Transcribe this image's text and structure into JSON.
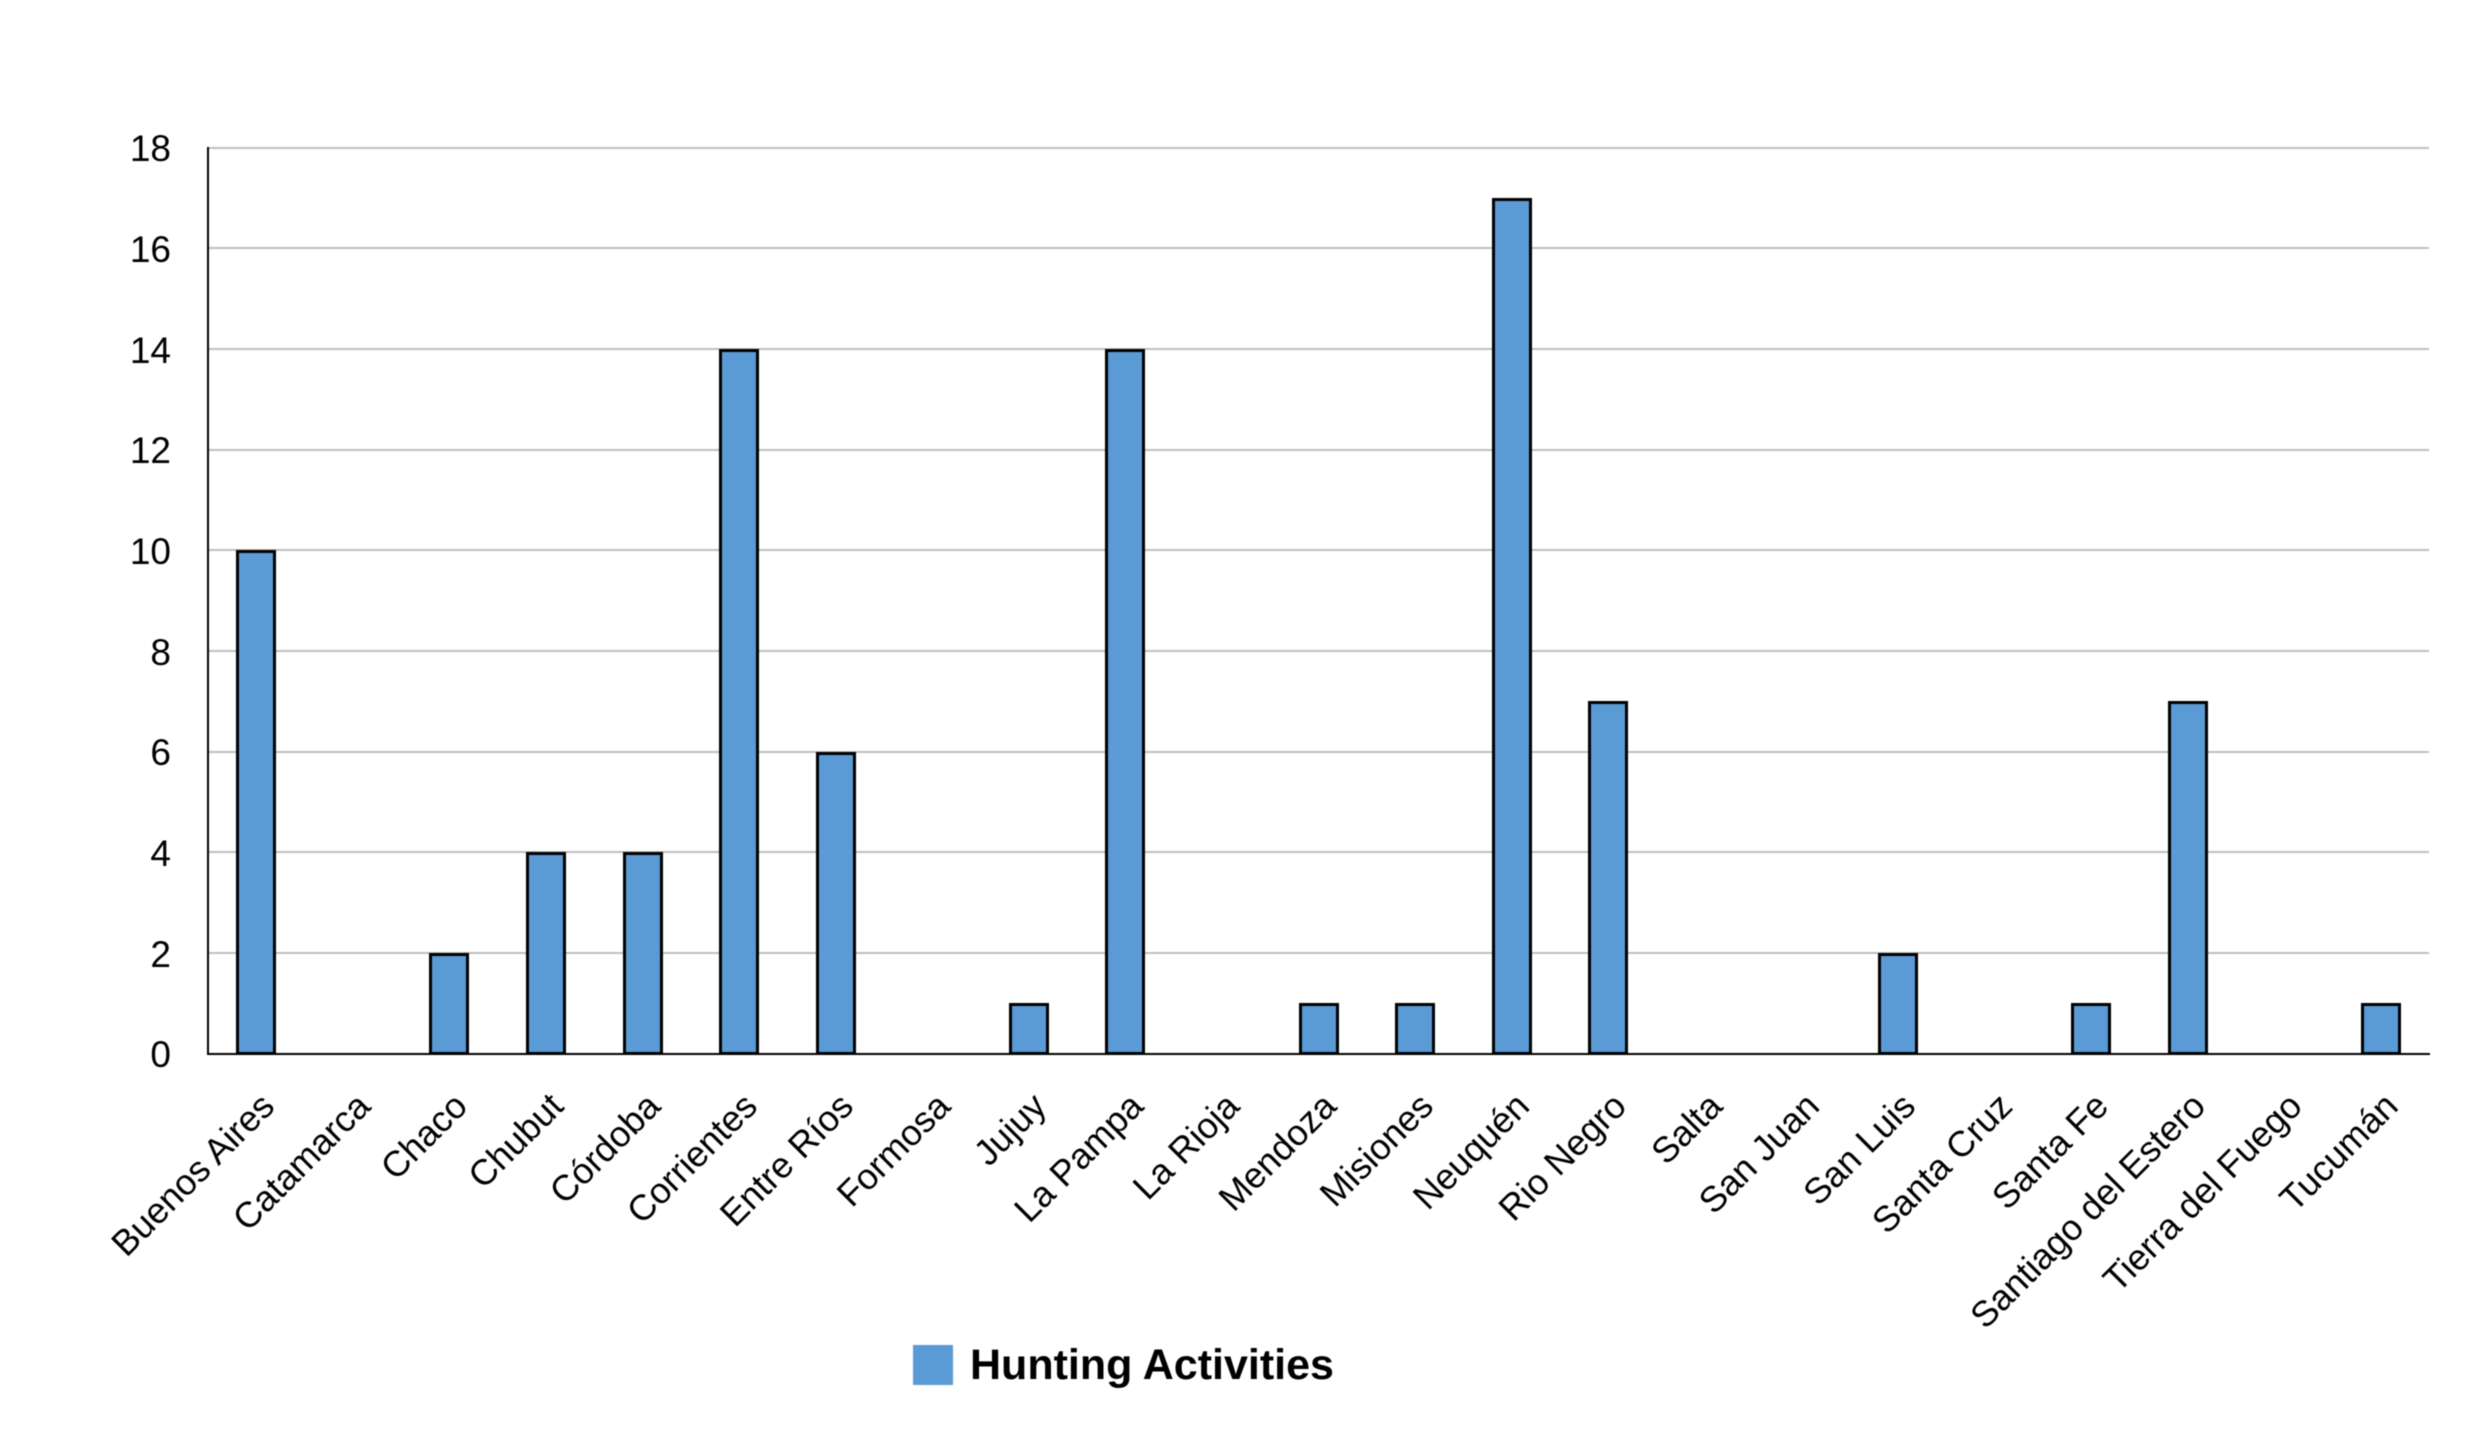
{
  "chart_data": {
    "type": "bar",
    "title": "",
    "categories": [
      "Buenos Aires",
      "Catamarca",
      "Chaco",
      "Chubut",
      "Córdoba",
      "Corrientes",
      "Entre Ríos",
      "Formosa",
      "Jujuy",
      "La Pampa",
      "La Rioja",
      "Mendoza",
      "Misiones",
      "Neuquén",
      "Rio Negro",
      "Salta",
      "San Juan",
      "San Luis",
      "Santa Cruz",
      "Santa Fe",
      "Santiago del Estero",
      "Tierra del Fuego",
      "Tucumán"
    ],
    "series": [
      {
        "name": "Hunting Activities",
        "values": [
          10,
          0,
          2,
          4,
          4,
          14,
          6,
          0,
          1,
          14,
          0,
          1,
          1,
          17,
          7,
          0,
          0,
          2,
          0,
          1,
          7,
          0,
          1
        ]
      }
    ],
    "xlabel": "",
    "ylabel": "",
    "ylim": [
      0,
      18
    ],
    "ytick_step": 2,
    "ytick_labels": [
      "0",
      "2",
      "4",
      "6",
      "8",
      "10",
      "12",
      "14",
      "16",
      "18"
    ],
    "grid": true,
    "legend_position": "bottom",
    "x_tick_label_rotation_deg": 45,
    "colors": {
      "bar_fill": "#5B9BD5",
      "bar_border": "#000000",
      "gridline": "#BFBFBF",
      "axis": "#000000",
      "text": "#000000",
      "background": "#FFFFFF"
    }
  },
  "legend": {
    "label": "Hunting Activities",
    "marker_color": "#5B9BD5"
  }
}
